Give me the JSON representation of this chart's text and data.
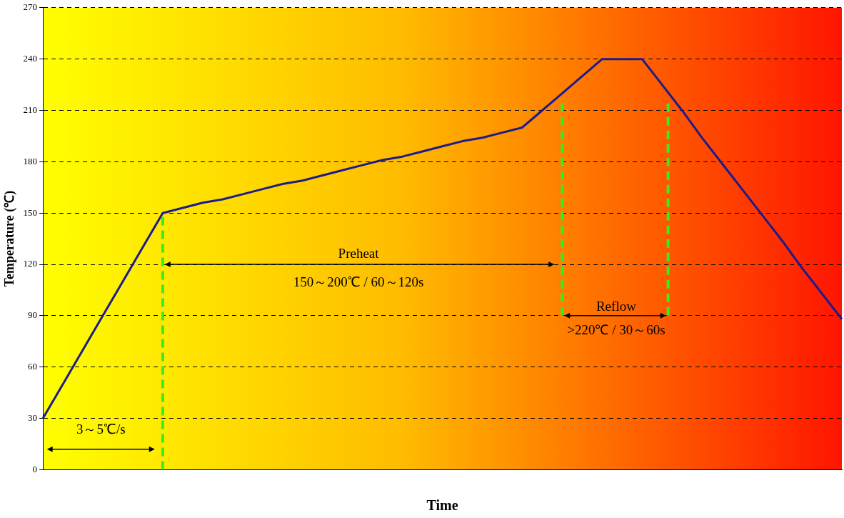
{
  "chart_data": {
    "type": "line",
    "xlabel": "Time",
    "ylabel": "Temperature (℃)",
    "categories": [
      null,
      null,
      null,
      null,
      null,
      null,
      null,
      null,
      null,
      null,
      null,
      null,
      null,
      null,
      null,
      null,
      null,
      null,
      null,
      null,
      null,
      null,
      null,
      null,
      null,
      null,
      null,
      null,
      null,
      null,
      null,
      null,
      null,
      null,
      null,
      null,
      null,
      null,
      null,
      null,
      null
    ],
    "series": [
      {
        "color": "#1c1c8a",
        "values": [
          30,
          50,
          70,
          90,
          110,
          130,
          150,
          153,
          156,
          158,
          161,
          164,
          167,
          169,
          172,
          175,
          178,
          181,
          183,
          186,
          189,
          192,
          194,
          197,
          200,
          210,
          220,
          230,
          240,
          240,
          240,
          225,
          210,
          194,
          179,
          164,
          149,
          134,
          118,
          103,
          88
        ]
      }
    ],
    "ylim": [
      0,
      270
    ],
    "yticks": [
      0,
      30,
      60,
      90,
      120,
      150,
      180,
      210,
      240,
      270
    ],
    "grid": "y",
    "marker": "none",
    "line_style": "solid",
    "annotations": [
      "3～5℃/s",
      "Preheat",
      "150～200℃ / 60～120s",
      "Reflow",
      ">220℃ / 30～60s"
    ]
  }
}
